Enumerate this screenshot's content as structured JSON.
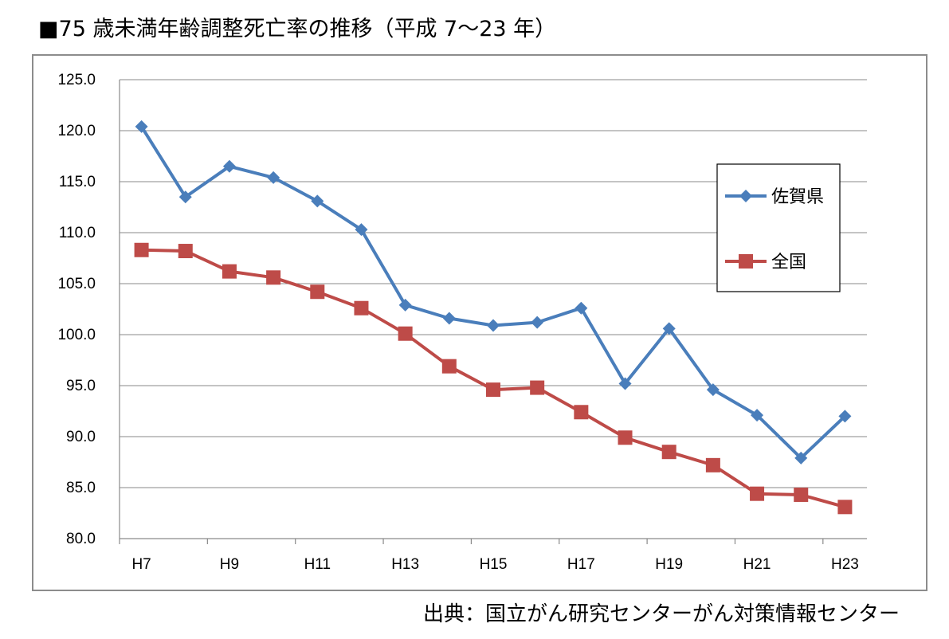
{
  "title": "■75 歳未満年齢調整死亡率の推移（平成 7〜23 年）",
  "source_note": "出典：国立がん研究センターがん対策情報センター",
  "chart_data": {
    "type": "line",
    "x": [
      "H7",
      "H8",
      "H9",
      "H10",
      "H11",
      "H12",
      "H13",
      "H14",
      "H15",
      "H16",
      "H17",
      "H18",
      "H19",
      "H20",
      "H21",
      "H22",
      "H23"
    ],
    "x_tick_labels": [
      "H7",
      "H9",
      "H11",
      "H13",
      "H15",
      "H17",
      "H19",
      "H21",
      "H23"
    ],
    "y_tick_labels": [
      "80.0",
      "85.0",
      "90.0",
      "95.0",
      "100.0",
      "105.0",
      "110.0",
      "115.0",
      "120.0",
      "125.0"
    ],
    "ylim": [
      80,
      125
    ],
    "grid": true,
    "legend_position": "right",
    "series": [
      {
        "name": "佐賀県",
        "color": "#4a7ebb",
        "marker": "diamond",
        "values": [
          120.4,
          113.5,
          116.5,
          115.4,
          113.1,
          110.3,
          102.9,
          101.6,
          100.9,
          101.2,
          102.6,
          95.2,
          100.6,
          94.6,
          92.1,
          87.9,
          92.0
        ]
      },
      {
        "name": "全国",
        "color": "#be4b48",
        "marker": "square",
        "values": [
          108.3,
          108.2,
          106.2,
          105.6,
          104.2,
          102.6,
          100.1,
          96.9,
          94.6,
          94.8,
          92.4,
          89.9,
          88.5,
          87.2,
          84.4,
          84.3,
          83.1
        ]
      }
    ]
  }
}
